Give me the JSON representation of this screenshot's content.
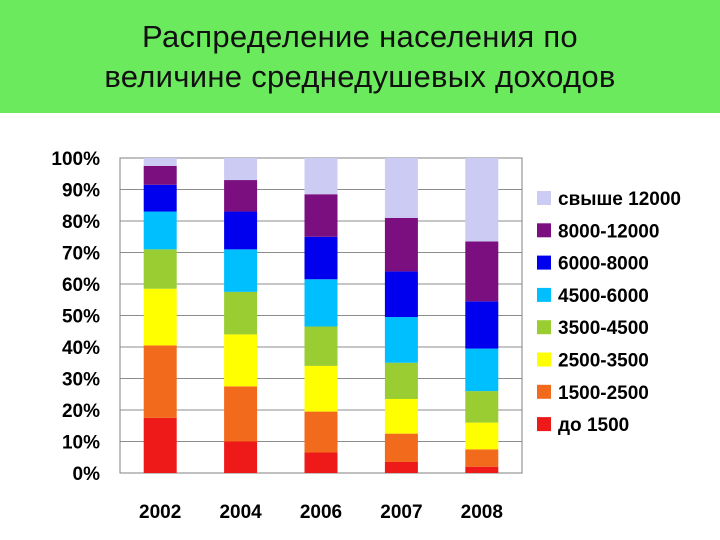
{
  "title_lines": [
    "Распределение населения по",
    "величине среднедушевых доходов"
  ],
  "chart_data": {
    "type": "bar",
    "stacked": true,
    "categories": [
      "2002",
      "2004",
      "2006",
      "2007",
      "2008"
    ],
    "ylim": [
      0,
      100
    ],
    "yticks": [
      "0%",
      "10%",
      "20%",
      "30%",
      "40%",
      "50%",
      "60%",
      "70%",
      "80%",
      "90%",
      "100%"
    ],
    "grid": true,
    "legend_position": "right",
    "series": [
      {
        "name": "до 1500",
        "color": "#ee1a1a",
        "values": [
          17.5,
          10,
          6.5,
          3.5,
          2
        ]
      },
      {
        "name": "1500-2500",
        "color": "#f26a1b",
        "values": [
          23,
          17.5,
          13,
          9,
          5.5
        ]
      },
      {
        "name": "2500-3500",
        "color": "#ffff00",
        "values": [
          18,
          16.5,
          14.5,
          11,
          8.5
        ]
      },
      {
        "name": "3500-4500",
        "color": "#9acd32",
        "values": [
          12.5,
          13.5,
          12.5,
          11.5,
          10
        ]
      },
      {
        "name": "4500-6000",
        "color": "#00bfff",
        "values": [
          12,
          13.5,
          15,
          14.5,
          13.5
        ]
      },
      {
        "name": "6000-8000",
        "color": "#0000ee",
        "values": [
          8.5,
          12,
          13.5,
          14.5,
          15
        ]
      },
      {
        "name": "8000-12000",
        "color": "#7b0f7f",
        "values": [
          6,
          10,
          13.5,
          17,
          19
        ]
      },
      {
        "name": "свыше 12000",
        "color": "#cccbf3",
        "values": [
          2.5,
          7,
          11.5,
          19,
          26.5
        ]
      }
    ]
  }
}
